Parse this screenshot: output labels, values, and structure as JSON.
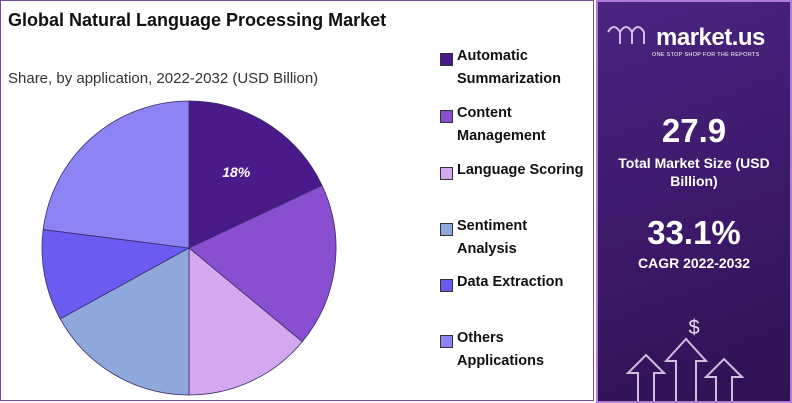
{
  "chart_data": {
    "type": "pie",
    "title": "Global Natural Language Processing Market",
    "subtitle": "Share, by application, 2022-2032 (USD Billion)",
    "categories": [
      "Automatic Summarization",
      "Content Management",
      "Language Scoring",
      "Sentiment Analysis",
      "Data Extraction",
      "Others Applications"
    ],
    "values": [
      18,
      18,
      14,
      17,
      10,
      23
    ],
    "value_labels": [
      "18%",
      null,
      null,
      null,
      null,
      null
    ],
    "colors": [
      "#4a1a8a",
      "#8a4fd0",
      "#d4a8ee",
      "#8fa8dc",
      "#6a5cf0",
      "#8c84f4"
    ]
  },
  "sidebar": {
    "brand": "market.us",
    "tagline": "ONE STOP SHOP FOR THE REPORTS",
    "market_size": "27.9",
    "market_size_label": "Total Market Size (USD Billion)",
    "cagr": "33.1%",
    "cagr_label": "CAGR 2022-2032"
  }
}
